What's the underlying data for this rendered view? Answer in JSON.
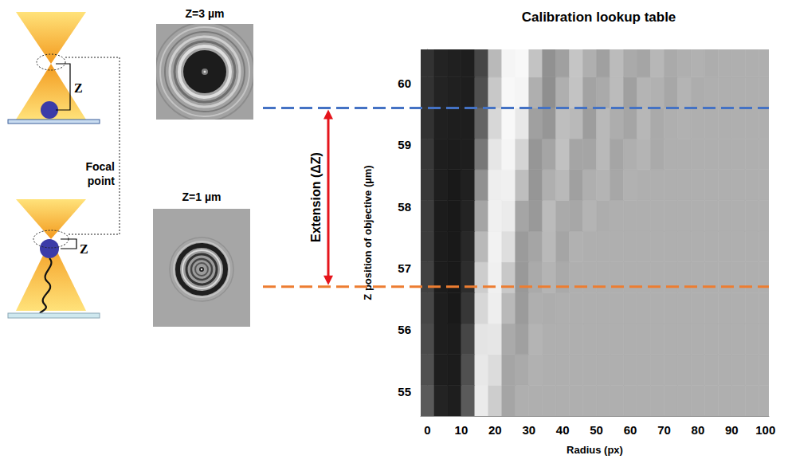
{
  "schematic": {
    "z_labels": [
      "Z",
      "Z"
    ],
    "focal_point_label": [
      "Focal",
      "point"
    ]
  },
  "bead_images": [
    {
      "title": "Z=3 µm"
    },
    {
      "title": "Z=1 µm"
    }
  ],
  "extension": {
    "label": "Extension (ΔZ)",
    "from": 56.7,
    "to": 59.6,
    "from_color": "#ed7d31",
    "to_color": "#4472c4"
  },
  "chart_data": {
    "type": "heatmap",
    "title": "Calibration lookup table",
    "x_label": "Radius (px)",
    "y_label": "Z position of objective (µm)",
    "xlim": [
      -2,
      101
    ],
    "xticks": [
      0,
      10,
      20,
      30,
      40,
      50,
      60,
      70,
      80,
      90,
      100
    ],
    "ylim": [
      54.6,
      60.55
    ],
    "yticks": [
      55,
      56,
      57,
      58,
      59,
      60
    ],
    "grid": false,
    "radius_edges": [
      -2,
      2,
      6,
      10,
      14,
      18,
      22,
      26,
      30,
      34,
      38,
      42,
      46,
      50,
      54,
      58,
      62,
      66,
      70,
      74,
      78,
      82,
      86,
      90,
      94,
      98,
      102
    ],
    "z_edges": [
      54.6,
      55.1,
      55.6,
      56.1,
      56.6,
      57.1,
      57.6,
      58.1,
      58.6,
      59.1,
      59.6,
      60.1,
      60.6
    ],
    "cells": [
      [
        90,
        35,
        30,
        90,
        235,
        205,
        165,
        175,
        175,
        175,
        175,
        175,
        175,
        175,
        175,
        175,
        175,
        175,
        175,
        175,
        175,
        175,
        175,
        175,
        175,
        175
      ],
      [
        80,
        30,
        28,
        80,
        232,
        220,
        165,
        170,
        177,
        175,
        175,
        175,
        175,
        175,
        175,
        175,
        175,
        175,
        175,
        175,
        175,
        175,
        175,
        175,
        175,
        175
      ],
      [
        75,
        30,
        28,
        70,
        228,
        230,
        170,
        160,
        180,
        175,
        175,
        175,
        175,
        175,
        175,
        175,
        175,
        175,
        175,
        175,
        175,
        175,
        175,
        175,
        175,
        175
      ],
      [
        70,
        30,
        25,
        55,
        215,
        238,
        185,
        155,
        175,
        173,
        175,
        175,
        175,
        175,
        175,
        175,
        175,
        175,
        175,
        175,
        175,
        175,
        175,
        175,
        175,
        175
      ],
      [
        65,
        28,
        25,
        45,
        205,
        240,
        200,
        153,
        170,
        180,
        170,
        175,
        175,
        175,
        175,
        175,
        175,
        175,
        175,
        175,
        175,
        175,
        175,
        175,
        175,
        175
      ],
      [
        60,
        28,
        25,
        40,
        185,
        242,
        222,
        155,
        165,
        185,
        165,
        177,
        175,
        175,
        175,
        175,
        175,
        175,
        175,
        175,
        175,
        175,
        175,
        175,
        175,
        175
      ],
      [
        60,
        28,
        25,
        35,
        165,
        240,
        235,
        165,
        153,
        187,
        170,
        167,
        180,
        173,
        175,
        175,
        175,
        175,
        175,
        175,
        175,
        175,
        175,
        175,
        175,
        175
      ],
      [
        55,
        30,
        25,
        32,
        145,
        238,
        240,
        190,
        150,
        175,
        185,
        160,
        175,
        180,
        167,
        177,
        175,
        175,
        175,
        175,
        175,
        175,
        175,
        175,
        175,
        175
      ],
      [
        55,
        30,
        28,
        30,
        120,
        230,
        245,
        212,
        150,
        165,
        193,
        165,
        165,
        185,
        165,
        175,
        180,
        170,
        175,
        175,
        175,
        175,
        175,
        175,
        175,
        175
      ],
      [
        50,
        32,
        30,
        30,
        100,
        215,
        248,
        232,
        160,
        150,
        190,
        185,
        157,
        185,
        173,
        165,
        183,
        170,
        175,
        177,
        175,
        175,
        175,
        175,
        175,
        175
      ],
      [
        50,
        35,
        32,
        30,
        80,
        200,
        248,
        245,
        175,
        143,
        175,
        195,
        163,
        170,
        187,
        160,
        180,
        177,
        167,
        180,
        173,
        175,
        175,
        175,
        175,
        175
      ],
      [
        50,
        35,
        32,
        30,
        70,
        185,
        245,
        248,
        195,
        145,
        160,
        197,
        175,
        160,
        187,
        170,
        165,
        183,
        170,
        175,
        177,
        173,
        175,
        175,
        175,
        175
      ]
    ]
  }
}
